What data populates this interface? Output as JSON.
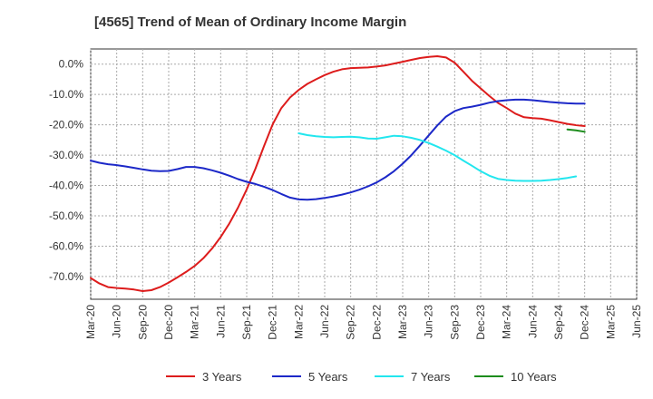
{
  "chart_data": {
    "type": "line",
    "title": "[4565]  Trend of Mean of Ordinary Income Margin",
    "xlabel": "",
    "ylabel": "",
    "ylim": [
      -77.5,
      5
    ],
    "y_ticks": [
      0,
      -10,
      -20,
      -30,
      -40,
      -50,
      -60,
      -70
    ],
    "y_tick_labels": [
      "0.0%",
      "-10.0%",
      "-20.0%",
      "-30.0%",
      "-40.0%",
      "-50.0%",
      "-60.0%",
      "-70.0%"
    ],
    "x_range": [
      "Mar-20",
      "Jun-25"
    ],
    "x_tick_labels": [
      "Mar-20",
      "Jun-20",
      "Sep-20",
      "Dec-20",
      "Mar-21",
      "Jun-21",
      "Sep-21",
      "Dec-21",
      "Mar-22",
      "Jun-22",
      "Sep-22",
      "Dec-22",
      "Mar-23",
      "Jun-23",
      "Sep-23",
      "Dec-23",
      "Mar-24",
      "Jun-24",
      "Sep-24",
      "Dec-24",
      "Mar-25",
      "Jun-25"
    ],
    "grid": true,
    "legend_position": "bottom",
    "series": [
      {
        "name": "3 Years",
        "color": "#dd1c1c",
        "points": [
          [
            "Mar-20",
            -70.5
          ],
          [
            "Apr-20",
            -72.3
          ],
          [
            "May-20",
            -73.5
          ],
          [
            "Jun-20",
            -73.8
          ],
          [
            "Jul-20",
            -74.0
          ],
          [
            "Aug-20",
            -74.3
          ],
          [
            "Sep-20",
            -74.8
          ],
          [
            "Oct-20",
            -74.5
          ],
          [
            "Nov-20",
            -73.5
          ],
          [
            "Dec-20",
            -72.0
          ],
          [
            "Jan-21",
            -70.3
          ],
          [
            "Feb-21",
            -68.5
          ],
          [
            "Mar-21",
            -66.5
          ],
          [
            "Apr-21",
            -64.0
          ],
          [
            "May-21",
            -60.8
          ],
          [
            "Jun-21",
            -57.0
          ],
          [
            "Jul-21",
            -52.5
          ],
          [
            "Aug-21",
            -47.3
          ],
          [
            "Sep-21",
            -41.3
          ],
          [
            "Oct-21",
            -34.5
          ],
          [
            "Nov-21",
            -27.0
          ],
          [
            "Dec-21",
            -19.8
          ],
          [
            "Jan-22",
            -14.5
          ],
          [
            "Feb-22",
            -11.0
          ],
          [
            "Mar-22",
            -8.5
          ],
          [
            "Apr-22",
            -6.5
          ],
          [
            "May-22",
            -5.0
          ],
          [
            "Jun-22",
            -3.6
          ],
          [
            "Jul-22",
            -2.5
          ],
          [
            "Aug-22",
            -1.7
          ],
          [
            "Sep-22",
            -1.3
          ],
          [
            "Oct-22",
            -1.2
          ],
          [
            "Nov-22",
            -1.1
          ],
          [
            "Dec-22",
            -0.8
          ],
          [
            "Jan-23",
            -0.4
          ],
          [
            "Feb-23",
            0.2
          ],
          [
            "Mar-23",
            0.8
          ],
          [
            "Apr-23",
            1.4
          ],
          [
            "May-23",
            2.0
          ],
          [
            "Jun-23",
            2.4
          ],
          [
            "Jul-23",
            2.6
          ],
          [
            "Aug-23",
            2.2
          ],
          [
            "Sep-23",
            0.5
          ],
          [
            "Oct-23",
            -2.5
          ],
          [
            "Nov-23",
            -5.5
          ],
          [
            "Dec-23",
            -8.0
          ],
          [
            "Jan-24",
            -10.5
          ],
          [
            "Feb-24",
            -12.8
          ],
          [
            "Mar-24",
            -14.5
          ],
          [
            "Apr-24",
            -16.3
          ],
          [
            "May-24",
            -17.5
          ],
          [
            "Jun-24",
            -17.8
          ],
          [
            "Jul-24",
            -18.0
          ],
          [
            "Aug-24",
            -18.5
          ],
          [
            "Sep-24",
            -19.1
          ],
          [
            "Oct-24",
            -19.7
          ],
          [
            "Nov-24",
            -20.1
          ],
          [
            "Dec-24",
            -20.4
          ]
        ]
      },
      {
        "name": "5 Years",
        "color": "#1c28c8",
        "points": [
          [
            "Mar-20",
            -31.8
          ],
          [
            "Apr-20",
            -32.5
          ],
          [
            "May-20",
            -33.0
          ],
          [
            "Jun-20",
            -33.3
          ],
          [
            "Jul-20",
            -33.7
          ],
          [
            "Aug-20",
            -34.2
          ],
          [
            "Sep-20",
            -34.7
          ],
          [
            "Oct-20",
            -35.1
          ],
          [
            "Nov-20",
            -35.3
          ],
          [
            "Dec-20",
            -35.2
          ],
          [
            "Jan-21",
            -34.6
          ],
          [
            "Feb-21",
            -33.9
          ],
          [
            "Mar-21",
            -33.9
          ],
          [
            "Apr-21",
            -34.3
          ],
          [
            "May-21",
            -35.0
          ],
          [
            "Jun-21",
            -35.8
          ],
          [
            "Jul-21",
            -36.8
          ],
          [
            "Aug-21",
            -37.9
          ],
          [
            "Sep-21",
            -38.8
          ],
          [
            "Oct-21",
            -39.5
          ],
          [
            "Nov-21",
            -40.4
          ],
          [
            "Dec-21",
            -41.5
          ],
          [
            "Jan-22",
            -42.8
          ],
          [
            "Feb-22",
            -44.0
          ],
          [
            "Mar-22",
            -44.6
          ],
          [
            "Apr-22",
            -44.7
          ],
          [
            "May-22",
            -44.5
          ],
          [
            "Jun-22",
            -44.1
          ],
          [
            "Jul-22",
            -43.6
          ],
          [
            "Aug-22",
            -43.0
          ],
          [
            "Sep-22",
            -42.3
          ],
          [
            "Oct-22",
            -41.4
          ],
          [
            "Nov-22",
            -40.3
          ],
          [
            "Dec-22",
            -39.0
          ],
          [
            "Jan-23",
            -37.3
          ],
          [
            "Feb-23",
            -35.3
          ],
          [
            "Mar-23",
            -32.8
          ],
          [
            "Apr-23",
            -30.0
          ],
          [
            "May-23",
            -26.8
          ],
          [
            "Jun-23",
            -23.5
          ],
          [
            "Jul-23",
            -20.2
          ],
          [
            "Aug-23",
            -17.3
          ],
          [
            "Sep-23",
            -15.5
          ],
          [
            "Oct-23",
            -14.5
          ],
          [
            "Nov-23",
            -14.0
          ],
          [
            "Dec-23",
            -13.4
          ],
          [
            "Jan-24",
            -12.7
          ],
          [
            "Feb-24",
            -12.2
          ],
          [
            "Mar-24",
            -11.9
          ],
          [
            "Apr-24",
            -11.7
          ],
          [
            "May-24",
            -11.7
          ],
          [
            "Jun-24",
            -11.9
          ],
          [
            "Jul-24",
            -12.2
          ],
          [
            "Aug-24",
            -12.5
          ],
          [
            "Sep-24",
            -12.7
          ],
          [
            "Oct-24",
            -12.9
          ],
          [
            "Nov-24",
            -13.0
          ],
          [
            "Dec-24",
            -13.0
          ]
        ]
      },
      {
        "name": "7 Years",
        "color": "#22e6ee",
        "points": [
          [
            "Mar-22",
            -22.8
          ],
          [
            "Apr-22",
            -23.4
          ],
          [
            "May-22",
            -23.8
          ],
          [
            "Jun-22",
            -24.0
          ],
          [
            "Jul-22",
            -24.1
          ],
          [
            "Aug-22",
            -24.0
          ],
          [
            "Sep-22",
            -23.9
          ],
          [
            "Oct-22",
            -24.1
          ],
          [
            "Nov-22",
            -24.5
          ],
          [
            "Dec-22",
            -24.6
          ],
          [
            "Jan-23",
            -24.1
          ],
          [
            "Feb-23",
            -23.6
          ],
          [
            "Mar-23",
            -23.8
          ],
          [
            "Apr-23",
            -24.3
          ],
          [
            "May-23",
            -25.0
          ],
          [
            "Jun-23",
            -26.0
          ],
          [
            "Jul-23",
            -27.2
          ],
          [
            "Aug-23",
            -28.5
          ],
          [
            "Sep-23",
            -30.0
          ],
          [
            "Oct-23",
            -31.8
          ],
          [
            "Nov-23",
            -33.5
          ],
          [
            "Dec-23",
            -35.3
          ],
          [
            "Jan-24",
            -36.8
          ],
          [
            "Feb-24",
            -37.8
          ],
          [
            "Mar-24",
            -38.2
          ],
          [
            "Apr-24",
            -38.4
          ],
          [
            "May-24",
            -38.5
          ],
          [
            "Jun-24",
            -38.5
          ],
          [
            "Jul-24",
            -38.4
          ],
          [
            "Aug-24",
            -38.2
          ],
          [
            "Sep-24",
            -37.9
          ],
          [
            "Oct-24",
            -37.5
          ],
          [
            "Nov-24",
            -37.0
          ]
        ]
      },
      {
        "name": "10 Years",
        "color": "#1c8c1c",
        "points": [
          [
            "Oct-24",
            -21.5
          ],
          [
            "Nov-24",
            -21.8
          ],
          [
            "Dec-24",
            -22.3
          ]
        ]
      }
    ]
  }
}
